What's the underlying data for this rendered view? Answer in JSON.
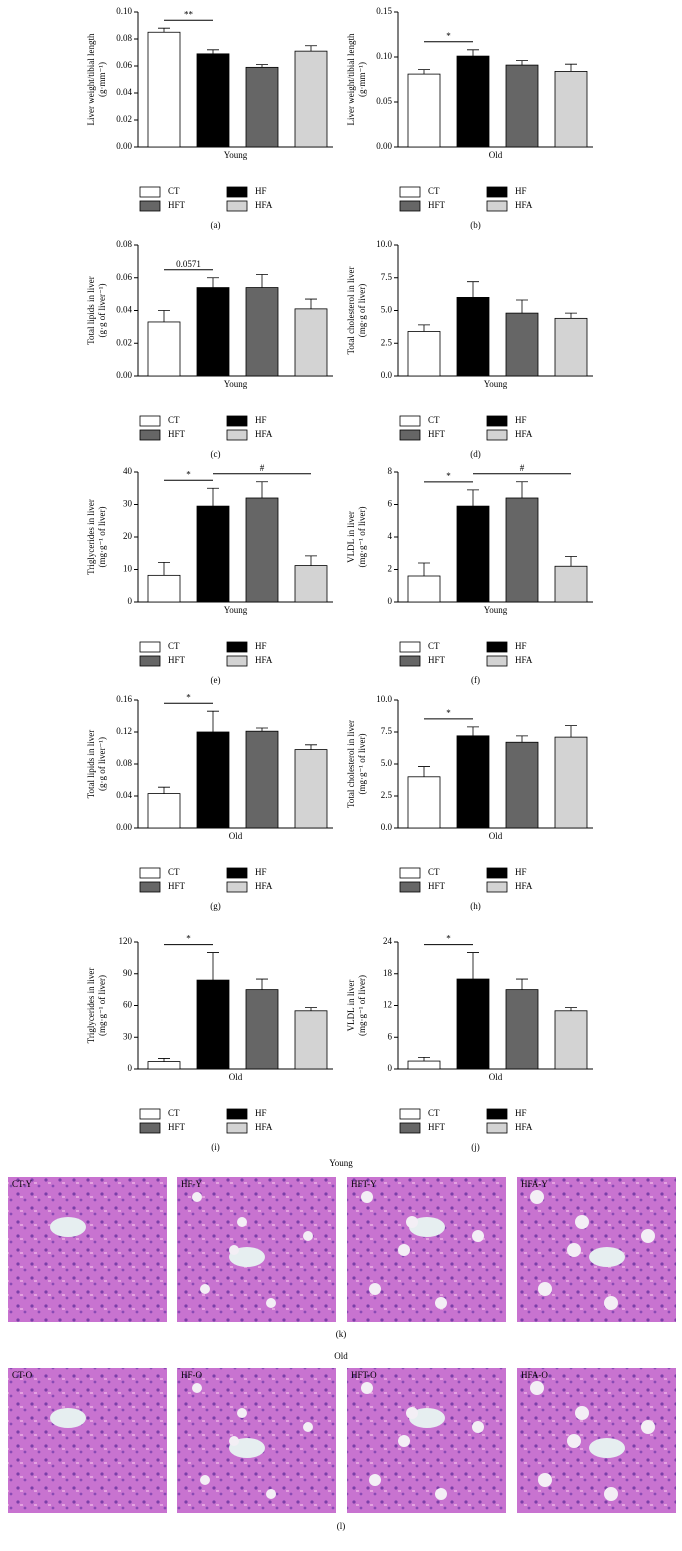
{
  "chart_data": [
    {
      "type": "bar",
      "panel": "(a)",
      "ylabel": [
        "Liver weight/tibial length",
        "(g·mm⁻¹)"
      ],
      "xlabel": "Young",
      "categories": [
        "CT",
        "HF",
        "HFT",
        "HFA"
      ],
      "colors": [
        "#ffffff",
        "#000000",
        "#666666",
        "#d3d3d3"
      ],
      "values": [
        0.085,
        0.069,
        0.059,
        0.071
      ],
      "errors": [
        0.003,
        0.003,
        0.002,
        0.004
      ],
      "ylim": [
        0,
        0.1
      ],
      "yticks": [
        {
          "value": 0,
          "label": "0.00"
        },
        0.02,
        0.04,
        0.06,
        0.08,
        {
          "value": 0.1,
          "label": "0.10"
        }
      ],
      "annotations": [
        {
          "text": "**",
          "between": [
            "CT",
            "HF"
          ]
        }
      ]
    },
    {
      "type": "bar",
      "panel": "(b)",
      "ylabel": [
        "Liver weight/tibial length",
        "(g·mm⁻¹)"
      ],
      "xlabel": "Old",
      "categories": [
        "CT",
        "HF",
        "HFT",
        "HFA"
      ],
      "colors": [
        "#ffffff",
        "#000000",
        "#666666",
        "#d3d3d3"
      ],
      "values": [
        0.081,
        0.101,
        0.091,
        0.084
      ],
      "errors": [
        0.005,
        0.007,
        0.005,
        0.008
      ],
      "ylim": [
        0,
        0.15
      ],
      "yticks": [
        {
          "value": 0,
          "label": "0.00"
        },
        0.05,
        {
          "value": 0.1,
          "label": "0.10"
        },
        0.15
      ],
      "annotations": [
        {
          "text": "*",
          "between": [
            "CT",
            "HF"
          ]
        }
      ]
    },
    {
      "type": "bar",
      "panel": "(c)",
      "ylabel": [
        "Total lipids in liver",
        "(g·g of liver⁻¹)"
      ],
      "xlabel": "Young",
      "categories": [
        "CT",
        "HF",
        "HFT",
        "HFA"
      ],
      "colors": [
        "#ffffff",
        "#000000",
        "#666666",
        "#d3d3d3"
      ],
      "values": [
        0.033,
        0.054,
        0.054,
        0.041
      ],
      "errors": [
        0.007,
        0.006,
        0.008,
        0.006
      ],
      "ylim": [
        0,
        0.08
      ],
      "yticks": [
        {
          "value": 0,
          "label": "0.00"
        },
        0.02,
        0.04,
        0.06,
        0.08
      ],
      "annotations": [
        {
          "text": "0.0571",
          "between": [
            "CT",
            "HF"
          ]
        }
      ]
    },
    {
      "type": "bar",
      "panel": "(d)",
      "ylabel": [
        "Total cholesterol in liver",
        "(mg·g of liver)"
      ],
      "xlabel": "Young",
      "categories": [
        "CT",
        "HF",
        "HFT",
        "HFA"
      ],
      "colors": [
        "#ffffff",
        "#000000",
        "#666666",
        "#d3d3d3"
      ],
      "values": [
        3.4,
        6.0,
        4.8,
        4.4
      ],
      "errors": [
        0.5,
        1.2,
        1.0,
        0.4
      ],
      "ylim": [
        0,
        10
      ],
      "yticks": [
        {
          "value": 0,
          "label": "0.0"
        },
        2.5,
        {
          "value": 5,
          "label": "5.0"
        },
        7.5,
        {
          "value": 10,
          "label": "10.0"
        }
      ],
      "annotations": []
    },
    {
      "type": "bar",
      "panel": "(e)",
      "ylabel": [
        "Triglycerides in liver",
        "(mg·g⁻¹ of liver)"
      ],
      "xlabel": "Young",
      "categories": [
        "CT",
        "HF",
        "HFT",
        "HFA"
      ],
      "colors": [
        "#ffffff",
        "#000000",
        "#666666",
        "#d3d3d3"
      ],
      "values": [
        8.2,
        29.5,
        32,
        11.2
      ],
      "errors": [
        4,
        5.5,
        5,
        3
      ],
      "ylim": [
        0,
        40
      ],
      "yticks": [
        0,
        10,
        20,
        30,
        40
      ],
      "annotations": [
        {
          "text": "*",
          "between": [
            "CT",
            "HF"
          ]
        },
        {
          "text": "#",
          "between": [
            "HF",
            "HFA"
          ]
        }
      ]
    },
    {
      "type": "bar",
      "panel": "(f)",
      "ylabel": [
        "VLDL in liver",
        "(mg·g⁻¹ of liver)"
      ],
      "xlabel": "Young",
      "categories": [
        "CT",
        "HF",
        "HFT",
        "HFA"
      ],
      "colors": [
        "#ffffff",
        "#000000",
        "#666666",
        "#d3d3d3"
      ],
      "values": [
        1.6,
        5.9,
        6.4,
        2.2
      ],
      "errors": [
        0.8,
        1.0,
        1.0,
        0.6
      ],
      "ylim": [
        0,
        8
      ],
      "yticks": [
        0,
        2,
        4,
        6,
        8
      ],
      "annotations": [
        {
          "text": "*",
          "between": [
            "CT",
            "HF"
          ]
        },
        {
          "text": "#",
          "between": [
            "HF",
            "HFA"
          ]
        }
      ]
    },
    {
      "type": "bar",
      "panel": "(g)",
      "ylabel": [
        "Total lipids in liver",
        "(g·g of liver⁻¹)"
      ],
      "xlabel": "Old",
      "categories": [
        "CT",
        "HF",
        "HFT",
        "HFA"
      ],
      "colors": [
        "#ffffff",
        "#000000",
        "#666666",
        "#d3d3d3"
      ],
      "values": [
        0.043,
        0.12,
        0.121,
        0.098
      ],
      "errors": [
        0.008,
        0.026,
        0.004,
        0.006
      ],
      "ylim": [
        0,
        0.16
      ],
      "yticks": [
        {
          "value": 0,
          "label": "0.00"
        },
        0.04,
        0.08,
        0.12,
        0.16
      ],
      "annotations": [
        {
          "text": "*",
          "between": [
            "CT",
            "HF"
          ]
        }
      ]
    },
    {
      "type": "bar",
      "panel": "(h)",
      "ylabel": [
        "Total cholesterol in liver",
        "(mg·g⁻¹ of liver)"
      ],
      "xlabel": "Old",
      "categories": [
        "CT",
        "HF",
        "HFT",
        "HFA"
      ],
      "colors": [
        "#ffffff",
        "#000000",
        "#666666",
        "#d3d3d3"
      ],
      "values": [
        4.0,
        7.2,
        6.7,
        7.1
      ],
      "errors": [
        0.8,
        0.7,
        0.5,
        0.9
      ],
      "ylim": [
        0,
        10
      ],
      "yticks": [
        {
          "value": 0,
          "label": "0.0"
        },
        2.5,
        {
          "value": 5,
          "label": "5.0"
        },
        7.5,
        {
          "value": 10,
          "label": "10.0"
        }
      ],
      "annotations": [
        {
          "text": "*",
          "between": [
            "CT",
            "HF"
          ]
        }
      ]
    },
    {
      "type": "bar",
      "panel": "(i)",
      "ylabel": [
        "Triglycerides in liver",
        "(mg·g⁻¹ of liver)"
      ],
      "xlabel": "Old",
      "categories": [
        "CT",
        "HF",
        "HFT",
        "HFA"
      ],
      "colors": [
        "#ffffff",
        "#000000",
        "#666666",
        "#d3d3d3"
      ],
      "values": [
        7,
        84,
        75,
        55
      ],
      "errors": [
        3,
        26,
        10,
        3
      ],
      "ylim": [
        0,
        120
      ],
      "yticks": [
        0,
        30,
        60,
        90,
        120
      ],
      "annotations": [
        {
          "text": "*",
          "between": [
            "CT",
            "HF"
          ]
        }
      ]
    },
    {
      "type": "bar",
      "panel": "(j)",
      "ylabel": [
        "VLDL in liver",
        "(mg·g⁻¹ of liver)"
      ],
      "xlabel": "Old",
      "categories": [
        "CT",
        "HF",
        "HFT",
        "HFA"
      ],
      "colors": [
        "#ffffff",
        "#000000",
        "#666666",
        "#d3d3d3"
      ],
      "values": [
        1.5,
        17,
        15,
        11
      ],
      "errors": [
        0.7,
        5,
        2,
        0.6
      ],
      "ylim": [
        0,
        24
      ],
      "yticks": [
        0,
        6,
        12,
        18,
        24
      ],
      "annotations": [
        {
          "text": "*",
          "between": [
            "CT",
            "HF"
          ]
        }
      ]
    }
  ],
  "histology": {
    "young": {
      "title": "Young",
      "panel": "(k)",
      "labels": [
        "CT-Y",
        "HF-Y",
        "HFT-Y",
        "HFA-Y"
      ]
    },
    "old": {
      "title": "Old",
      "panel": "(l)",
      "labels": [
        "CT-O",
        "HF-O",
        "HFT-O",
        "HFA-O"
      ]
    }
  }
}
